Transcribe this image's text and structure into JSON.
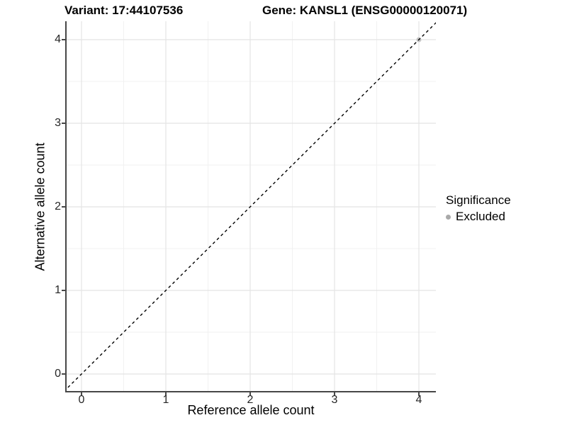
{
  "titles": {
    "variant": "Variant: 17:44107536",
    "gene": "Gene: KANSL1 (ENSG00000120071)"
  },
  "chart_data": {
    "type": "scatter",
    "xlabel": "Reference allele count",
    "ylabel": "Alternative allele count",
    "xlim": [
      -0.2,
      4.2
    ],
    "ylim": [
      -0.2,
      4.2
    ],
    "x_ticks": [
      0,
      1,
      2,
      3,
      4
    ],
    "y_ticks": [
      0,
      1,
      2,
      3,
      4
    ],
    "x_minor_ticks": [
      0.5,
      1.5,
      2.5,
      3.5
    ],
    "y_minor_ticks": [
      0.5,
      1.5,
      2.5,
      3.5
    ],
    "grid": true,
    "series": [
      {
        "name": "Excluded",
        "color": "#c4c4c4",
        "points": [
          {
            "x": 4,
            "y": 4
          }
        ]
      }
    ],
    "reference_line": {
      "slope": 1,
      "intercept": 0,
      "linetype": "dashed",
      "color": "#000000"
    },
    "legend": {
      "position": "right",
      "title": "Significance",
      "items": [
        {
          "label": "Excluded",
          "color": "#a9a9a9"
        }
      ]
    }
  },
  "colors": {
    "background": "#ffffff",
    "grid_major": "#e4e4e4",
    "grid_minor": "#f1f1f1",
    "axis_line": "#474747",
    "tick_label": "#262626",
    "point_fill": "#c4c4c4"
  }
}
